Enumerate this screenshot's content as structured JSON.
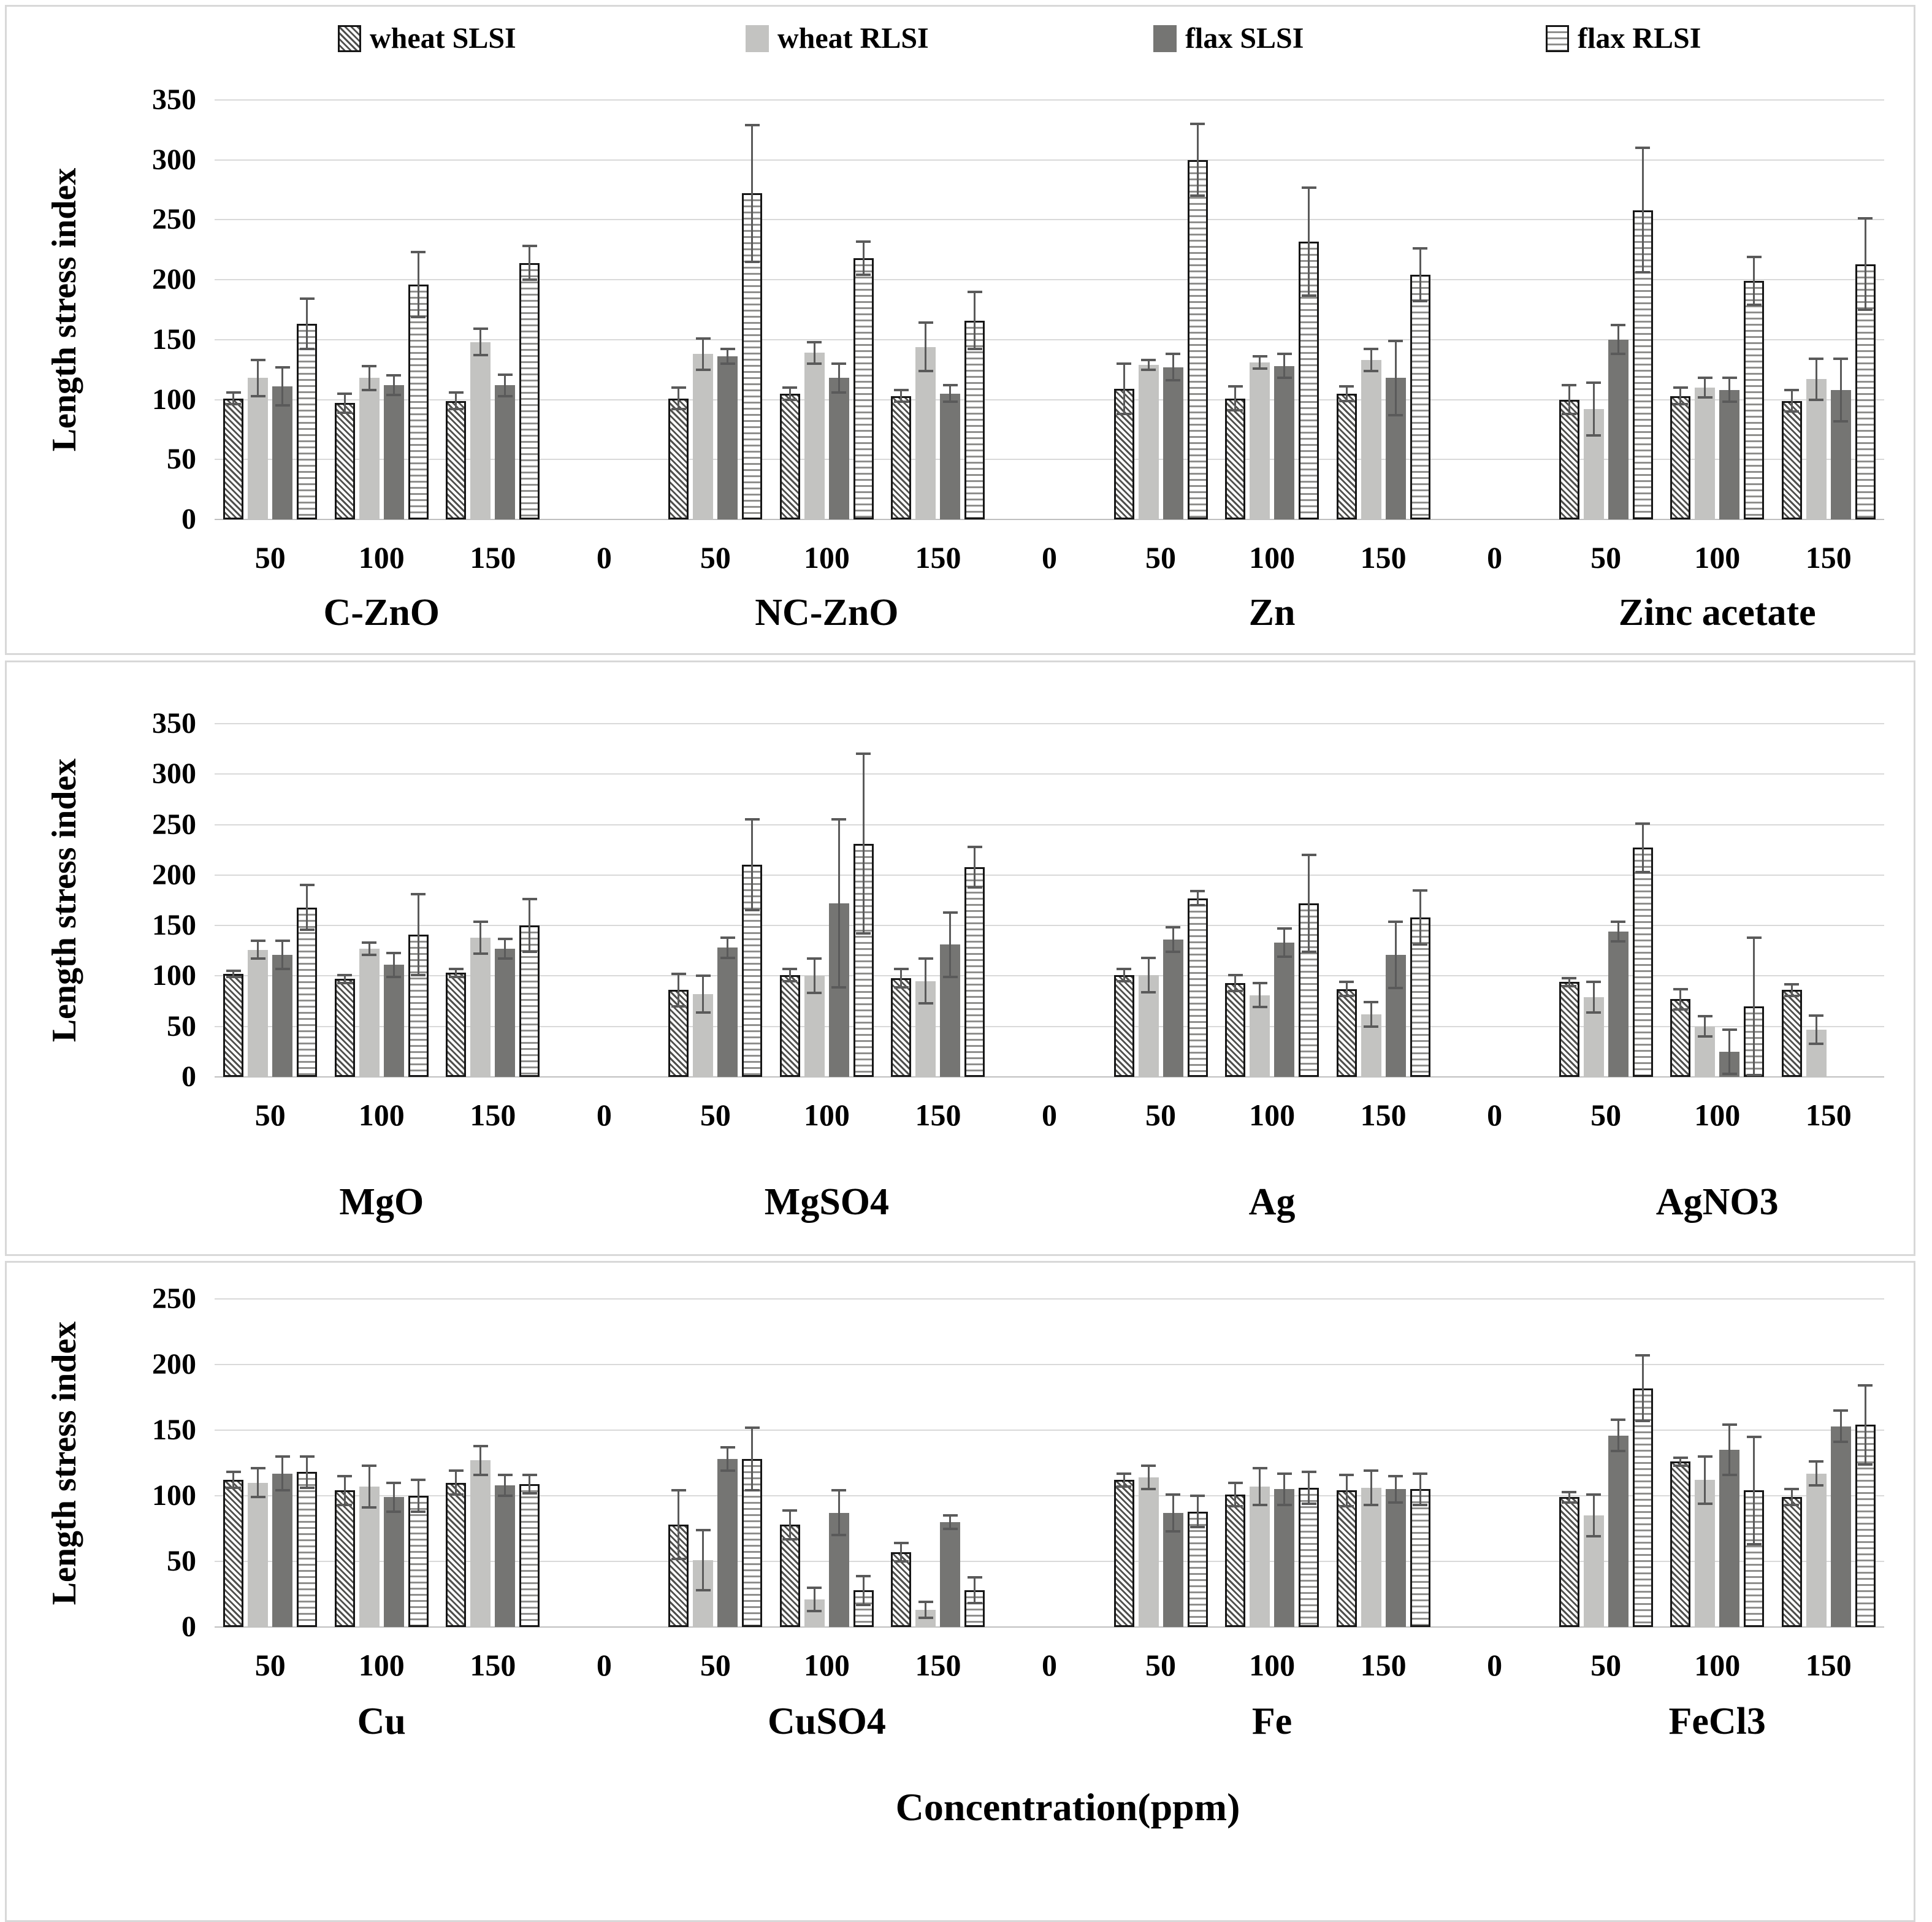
{
  "xlabel": "Concentration(ppm)",
  "legend": [
    {
      "label": "wheat SLSI",
      "swatch": "diagonal-hatch"
    },
    {
      "label": "wheat RLSI",
      "swatch": "light-gray"
    },
    {
      "label": "flax SLSI",
      "swatch": "dark-gray"
    },
    {
      "label": "flax RLSI",
      "swatch": "horizontal-lines"
    }
  ],
  "colors": {
    "wheat_slsi_hatch": "#50504e",
    "wheat_rlsi_fill": "#c3c3c1",
    "flax_slsi_fill": "#757573",
    "flax_rlsi_line": "#8f8f8d",
    "bar_border": "#161616",
    "error_bar": "#5a5a5a",
    "gridline": "#d9d9d9",
    "panel_border": "#d8d8d8",
    "text": "#000000"
  },
  "chart_data": [
    {
      "type": "bar",
      "ylabel": "Length stress index",
      "ylim": [
        0,
        350
      ],
      "yticks": [
        0,
        50,
        100,
        150,
        200,
        250,
        300,
        350
      ],
      "grid": true,
      "legend_position": "top",
      "x_tick_labels": [
        "50",
        "100",
        "150",
        "0",
        "50",
        "100",
        "150",
        "0",
        "50",
        "100",
        "150",
        "0",
        "50",
        "100",
        "150"
      ],
      "concentrations": [
        "50",
        "100",
        "150"
      ],
      "groups": [
        {
          "label": "C-ZnO",
          "series": [
            {
              "name": "wheat SLSI",
              "values": [
                101,
                97,
                99
              ],
              "errors": [
                5,
                8,
                7
              ]
            },
            {
              "name": "wheat RLSI",
              "values": [
                118,
                118,
                148
              ],
              "errors": [
                15,
                10,
                11
              ]
            },
            {
              "name": "flax SLSI",
              "values": [
                111,
                112,
                112
              ],
              "errors": [
                16,
                8,
                9
              ]
            },
            {
              "name": "flax RLSI",
              "values": [
                163,
                196,
                214
              ],
              "errors": [
                21,
                27,
                14
              ]
            }
          ]
        },
        {
          "label": "NC-ZnO",
          "series": [
            {
              "name": "wheat SLSI",
              "values": [
                101,
                105,
                103
              ],
              "errors": [
                9,
                5,
                5
              ]
            },
            {
              "name": "wheat RLSI",
              "values": [
                138,
                139,
                144
              ],
              "errors": [
                13,
                9,
                20
              ]
            },
            {
              "name": "flax SLSI",
              "values": [
                136,
                118,
                105
              ],
              "errors": [
                6,
                12,
                7
              ]
            },
            {
              "name": "flax RLSI",
              "values": [
                272,
                218,
                166
              ],
              "errors": [
                57,
                14,
                24
              ]
            }
          ]
        },
        {
          "label": "Zn",
          "series": [
            {
              "name": "wheat SLSI",
              "values": [
                109,
                101,
                105
              ],
              "errors": [
                21,
                10,
                6
              ]
            },
            {
              "name": "wheat RLSI",
              "values": [
                129,
                131,
                133
              ],
              "errors": [
                4,
                5,
                9
              ]
            },
            {
              "name": "flax SLSI",
              "values": [
                127,
                128,
                118
              ],
              "errors": [
                11,
                10,
                31
              ]
            },
            {
              "name": "flax RLSI",
              "values": [
                300,
                232,
                204
              ],
              "errors": [
                30,
                45,
                22
              ]
            }
          ]
        },
        {
          "label": "Zinc acetate",
          "series": [
            {
              "name": "wheat SLSI",
              "values": [
                100,
                103,
                99
              ],
              "errors": [
                12,
                7,
                9
              ]
            },
            {
              "name": "wheat RLSI",
              "values": [
                92,
                110,
                117
              ],
              "errors": [
                22,
                8,
                17
              ]
            },
            {
              "name": "flax SLSI",
              "values": [
                150,
                108,
                108
              ],
              "errors": [
                12,
                10,
                26
              ]
            },
            {
              "name": "flax RLSI",
              "values": [
                258,
                199,
                213
              ],
              "errors": [
                52,
                20,
                38
              ]
            }
          ]
        }
      ]
    },
    {
      "type": "bar",
      "ylabel": "Length stress index",
      "ylim": [
        0,
        350
      ],
      "yticks": [
        0,
        50,
        100,
        150,
        200,
        250,
        300,
        350
      ],
      "grid": true,
      "x_tick_labels": [
        "50",
        "100",
        "150",
        "0",
        "50",
        "100",
        "150",
        "0",
        "50",
        "100",
        "150",
        "0",
        "50",
        "100",
        "150"
      ],
      "concentrations": [
        "50",
        "100",
        "150"
      ],
      "groups": [
        {
          "label": "MgO",
          "series": [
            {
              "name": "wheat SLSI",
              "values": [
                102,
                97,
                103
              ],
              "errors": [
                3,
                4,
                4
              ]
            },
            {
              "name": "wheat RLSI",
              "values": [
                126,
                127,
                138
              ],
              "errors": [
                9,
                6,
                16
              ]
            },
            {
              "name": "flax SLSI",
              "values": [
                121,
                111,
                127
              ],
              "errors": [
                14,
                12,
                10
              ]
            },
            {
              "name": "flax RLSI",
              "values": [
                168,
                141,
                150
              ],
              "errors": [
                22,
                40,
                26
              ]
            }
          ]
        },
        {
          "label": "MgSO4",
          "series": [
            {
              "name": "wheat SLSI",
              "values": [
                86,
                101,
                98
              ],
              "errors": [
                16,
                6,
                9
              ]
            },
            {
              "name": "wheat RLSI",
              "values": [
                82,
                100,
                95
              ],
              "errors": [
                18,
                17,
                22
              ]
            },
            {
              "name": "flax SLSI",
              "values": [
                128,
                172,
                131
              ],
              "errors": [
                10,
                83,
                32
              ]
            },
            {
              "name": "flax RLSI",
              "values": [
                210,
                231,
                208
              ],
              "errors": [
                45,
                89,
                20
              ]
            }
          ]
        },
        {
          "label": "Ag",
          "series": [
            {
              "name": "wheat SLSI",
              "values": [
                101,
                93,
                87
              ],
              "errors": [
                6,
                8,
                7
              ]
            },
            {
              "name": "wheat RLSI",
              "values": [
                101,
                81,
                62
              ],
              "errors": [
                17,
                12,
                12
              ]
            },
            {
              "name": "flax SLSI",
              "values": [
                136,
                133,
                121
              ],
              "errors": [
                12,
                14,
                33
              ]
            },
            {
              "name": "flax RLSI",
              "values": [
                177,
                172,
                158
              ],
              "errors": [
                7,
                48,
                27
              ]
            }
          ]
        },
        {
          "label": "AgNO3",
          "series": [
            {
              "name": "wheat SLSI",
              "values": [
                94,
                77,
                86
              ],
              "errors": [
                4,
                10,
                6
              ]
            },
            {
              "name": "wheat RLSI",
              "values": [
                79,
                50,
                47
              ],
              "errors": [
                15,
                10,
                14
              ]
            },
            {
              "name": "flax SLSI",
              "values": [
                144,
                25,
                0
              ],
              "errors": [
                10,
                22,
                0
              ]
            },
            {
              "name": "flax RLSI",
              "values": [
                227,
                70,
                0
              ],
              "errors": [
                24,
                68,
                0
              ]
            }
          ]
        }
      ]
    },
    {
      "type": "bar",
      "ylabel": "Length stress index",
      "ylim": [
        0,
        250
      ],
      "yticks": [
        0,
        50,
        100,
        150,
        200,
        250
      ],
      "grid": true,
      "x_tick_labels": [
        "50",
        "100",
        "150",
        "0",
        "50",
        "100",
        "150",
        "0",
        "50",
        "100",
        "150",
        "0",
        "50",
        "100",
        "150"
      ],
      "concentrations": [
        "50",
        "100",
        "150"
      ],
      "groups": [
        {
          "label": "Cu",
          "series": [
            {
              "name": "wheat SLSI",
              "values": [
                112,
                104,
                110
              ],
              "errors": [
                6,
                11,
                9
              ]
            },
            {
              "name": "wheat RLSI",
              "values": [
                110,
                107,
                127
              ],
              "errors": [
                11,
                16,
                11
              ]
            },
            {
              "name": "flax SLSI",
              "values": [
                117,
                99,
                108
              ],
              "errors": [
                13,
                11,
                8
              ]
            },
            {
              "name": "flax RLSI",
              "values": [
                118,
                100,
                109
              ],
              "errors": [
                12,
                12,
                7
              ]
            }
          ]
        },
        {
          "label": "CuSO4",
          "series": [
            {
              "name": "wheat SLSI",
              "values": [
                78,
                78,
                57
              ],
              "errors": [
                26,
                11,
                7
              ]
            },
            {
              "name": "wheat RLSI",
              "values": [
                51,
                21,
                13
              ],
              "errors": [
                23,
                9,
                6
              ]
            },
            {
              "name": "flax SLSI",
              "values": [
                128,
                87,
                80
              ],
              "errors": [
                9,
                17,
                5
              ]
            },
            {
              "name": "flax RLSI",
              "values": [
                128,
                28,
                28
              ],
              "errors": [
                24,
                11,
                10
              ]
            }
          ]
        },
        {
          "label": "Fe",
          "series": [
            {
              "name": "wheat SLSI",
              "values": [
                112,
                101,
                104
              ],
              "errors": [
                5,
                9,
                12
              ]
            },
            {
              "name": "wheat RLSI",
              "values": [
                114,
                107,
                106
              ],
              "errors": [
                9,
                14,
                13
              ]
            },
            {
              "name": "flax SLSI",
              "values": [
                87,
                105,
                105
              ],
              "errors": [
                14,
                12,
                10
              ]
            },
            {
              "name": "flax RLSI",
              "values": [
                88,
                106,
                105
              ],
              "errors": [
                12,
                12,
                12
              ]
            }
          ]
        },
        {
          "label": "FeCl3",
          "series": [
            {
              "name": "wheat SLSI",
              "values": [
                99,
                126,
                99
              ],
              "errors": [
                4,
                3,
                6
              ]
            },
            {
              "name": "wheat RLSI",
              "values": [
                85,
                112,
                117
              ],
              "errors": [
                16,
                18,
                9
              ]
            },
            {
              "name": "flax SLSI",
              "values": [
                146,
                135,
                153
              ],
              "errors": [
                12,
                19,
                12
              ]
            },
            {
              "name": "flax RLSI",
              "values": [
                182,
                104,
                154
              ],
              "errors": [
                25,
                41,
                30
              ]
            }
          ]
        }
      ]
    }
  ]
}
